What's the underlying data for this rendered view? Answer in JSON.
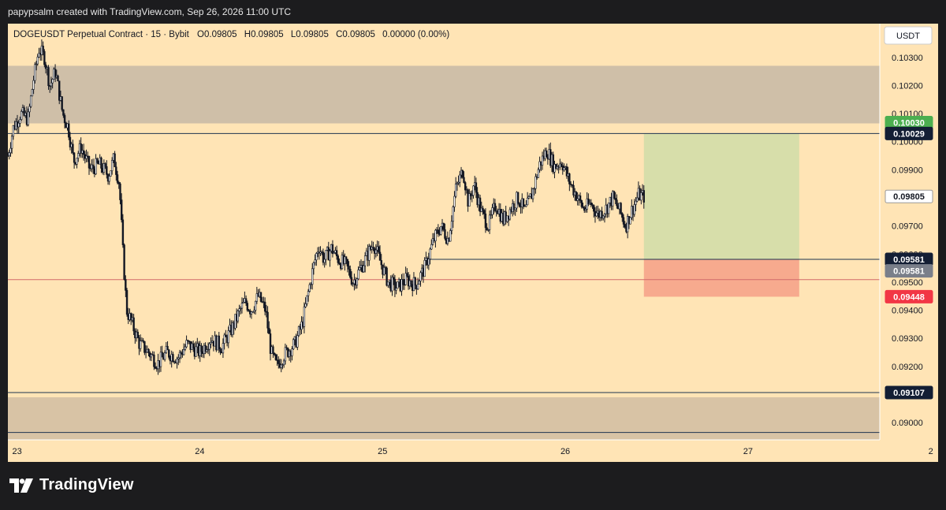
{
  "header": {
    "attribution": "papypsalm created with TradingView.com, Sep 26, 2026 11:00 UTC"
  },
  "footer": {
    "brand": "TradingView"
  },
  "chart_data": {
    "type": "candlestick",
    "symbol_line": "DOGEUSDT Perpetual Contract · 15 · Bybit",
    "ohlc_labels": [
      "O",
      "H",
      "L",
      "C"
    ],
    "ohlc_values": [
      "0.09805",
      "0.09805",
      "0.09805",
      "0.09805"
    ],
    "change": "0.00000 (0.00%)",
    "currency": "USDT",
    "ylim": [
      0.0886,
      0.1042
    ],
    "yticks": [
      "0.10300",
      "0.10200",
      "0.10100",
      "0.10000",
      "0.09900",
      "0.09700",
      "0.09600",
      "0.09500",
      "0.09400",
      "0.09300",
      "0.09200",
      "0.09000"
    ],
    "xticks": [
      "23",
      "24",
      "25",
      "26",
      "27",
      "2"
    ],
    "xlim": [
      22.95,
      28.04
    ],
    "zones": [
      {
        "name": "supply-zone",
        "y1": 0.10065,
        "y2": 0.1027,
        "x1": 22.95,
        "x2": 28.04,
        "color": "#cfbfa8"
      },
      {
        "name": "demand-zone",
        "y1": 0.0893,
        "y2": 0.0909,
        "x1": 22.95,
        "x2": 28.04,
        "color": "#d8c3a5"
      },
      {
        "name": "profit-zone",
        "y1": 0.09581,
        "y2": 0.10029,
        "x1": 26.43,
        "x2": 27.28,
        "color": "#d7deaa"
      },
      {
        "name": "loss-zone",
        "y1": 0.09448,
        "y2": 0.09581,
        "x1": 26.43,
        "x2": 27.28,
        "color": "#f7aa8e"
      }
    ],
    "lines": [
      {
        "name": "resistance-line",
        "y": 0.10029,
        "x1": 22.95,
        "x2": 28.04,
        "color": "#1e3350"
      },
      {
        "name": "entry-line",
        "y": 0.09581,
        "x1": 25.26,
        "x2": 28.04,
        "color": "#1e3350"
      },
      {
        "name": "previous-close-line",
        "y": 0.09509,
        "x1": 22.95,
        "x2": 28.04,
        "color": "#d26a6a"
      },
      {
        "name": "support-line",
        "y": 0.09107,
        "x1": 22.95,
        "x2": 28.04,
        "color": "#1e3350"
      },
      {
        "name": "lower-line",
        "y": 0.08965,
        "x1": 22.95,
        "x2": 28.04,
        "color": "#1e3350"
      }
    ],
    "price_labels": [
      {
        "name": "label-target",
        "value": "0.10030",
        "y": 0.10068,
        "bg": "#4caf50",
        "fg": "#ffffff"
      },
      {
        "name": "label-resistance",
        "value": "0.10029",
        "y": 0.10029,
        "bg": "#131e34",
        "fg": "#ffffff"
      },
      {
        "name": "label-last-price",
        "value": "0.09805",
        "y": 0.09805,
        "bg": "#ffffff",
        "fg": "#131722"
      },
      {
        "name": "label-entry",
        "value": "0.09581",
        "y": 0.09581,
        "bg": "#131e34",
        "fg": "#ffffff"
      },
      {
        "name": "label-entry-grey",
        "value": "0.09581",
        "y": 0.0954,
        "bg": "#7a7f8a",
        "fg": "#ffffff"
      },
      {
        "name": "label-stop",
        "value": "0.09448",
        "y": 0.09448,
        "bg": "#f23645",
        "fg": "#ffffff"
      },
      {
        "name": "label-support",
        "value": "0.09107",
        "y": 0.09107,
        "bg": "#131e34",
        "fg": "#ffffff"
      }
    ],
    "price_path": [
      [
        22.95,
        0.0995
      ],
      [
        22.98,
        0.1005
      ],
      [
        23.02,
        0.101
      ],
      [
        23.06,
        0.1008
      ],
      [
        23.09,
        0.1022
      ],
      [
        23.12,
        0.1033
      ],
      [
        23.15,
        0.103
      ],
      [
        23.18,
        0.102
      ],
      [
        23.21,
        0.1025
      ],
      [
        23.25,
        0.101
      ],
      [
        23.28,
        0.1005
      ],
      [
        23.31,
        0.0993
      ],
      [
        23.35,
        0.0998
      ],
      [
        23.4,
        0.099
      ],
      [
        23.45,
        0.0992
      ],
      [
        23.5,
        0.0988
      ],
      [
        23.53,
        0.0994
      ],
      [
        23.56,
        0.0985
      ],
      [
        23.58,
        0.096
      ],
      [
        23.6,
        0.094
      ],
      [
        23.63,
        0.0935
      ],
      [
        23.67,
        0.0928
      ],
      [
        23.72,
        0.0925
      ],
      [
        23.77,
        0.0921
      ],
      [
        23.82,
        0.0925
      ],
      [
        23.88,
        0.0923
      ],
      [
        23.93,
        0.0928
      ],
      [
        24.0,
        0.0925
      ],
      [
        24.06,
        0.093
      ],
      [
        24.12,
        0.0927
      ],
      [
        24.18,
        0.0934
      ],
      [
        24.22,
        0.094
      ],
      [
        24.25,
        0.0943
      ],
      [
        24.28,
        0.094
      ],
      [
        24.32,
        0.0945
      ],
      [
        24.36,
        0.094
      ],
      [
        24.39,
        0.0925
      ],
      [
        24.42,
        0.092
      ],
      [
        24.46,
        0.0924
      ],
      [
        24.52,
        0.0928
      ],
      [
        24.56,
        0.0935
      ],
      [
        24.59,
        0.0945
      ],
      [
        24.62,
        0.0955
      ],
      [
        24.65,
        0.0963
      ],
      [
        24.68,
        0.0958
      ],
      [
        24.72,
        0.0962
      ],
      [
        24.76,
        0.0958
      ],
      [
        24.8,
        0.0956
      ],
      [
        24.84,
        0.095
      ],
      [
        24.88,
        0.0955
      ],
      [
        24.92,
        0.096
      ],
      [
        24.95,
        0.0964
      ],
      [
        24.99,
        0.0957
      ],
      [
        25.03,
        0.095
      ],
      [
        25.08,
        0.0948
      ],
      [
        25.13,
        0.0951
      ],
      [
        25.18,
        0.0949
      ],
      [
        25.23,
        0.0955
      ],
      [
        25.28,
        0.0965
      ],
      [
        25.32,
        0.097
      ],
      [
        25.36,
        0.0965
      ],
      [
        25.4,
        0.0983
      ],
      [
        25.44,
        0.099
      ],
      [
        25.47,
        0.0978
      ],
      [
        25.5,
        0.0985
      ],
      [
        25.54,
        0.0975
      ],
      [
        25.58,
        0.097
      ],
      [
        25.62,
        0.0978
      ],
      [
        25.66,
        0.0972
      ],
      [
        25.7,
        0.0976
      ],
      [
        25.74,
        0.098
      ],
      [
        25.78,
        0.0975
      ],
      [
        25.82,
        0.0982
      ],
      [
        25.86,
        0.0992
      ],
      [
        25.9,
        0.0997
      ],
      [
        25.94,
        0.0991
      ],
      [
        25.98,
        0.0993
      ],
      [
        26.02,
        0.0986
      ],
      [
        26.06,
        0.0981
      ],
      [
        26.1,
        0.0976
      ],
      [
        26.14,
        0.0978
      ],
      [
        26.18,
        0.0974
      ],
      [
        26.22,
        0.0976
      ],
      [
        26.26,
        0.098
      ],
      [
        26.3,
        0.0975
      ],
      [
        26.33,
        0.097
      ],
      [
        26.36,
        0.0975
      ],
      [
        26.4,
        0.0981
      ],
      [
        26.43,
        0.09805
      ]
    ]
  }
}
